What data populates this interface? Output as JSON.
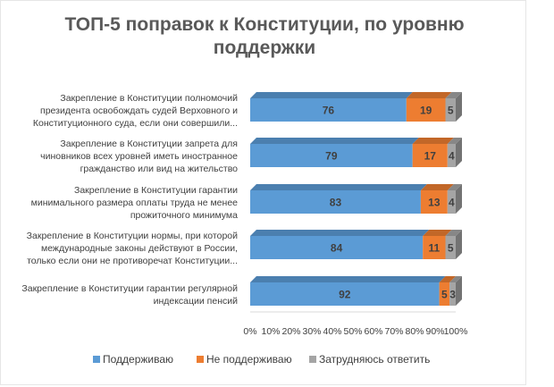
{
  "chart_data": {
    "type": "bar",
    "orientation": "horizontal-stacked-100",
    "title_lines": [
      "ТОП-5 поправок к Конституции, по уровню",
      "поддержки"
    ],
    "categories": [
      [
        "Закрепление в Конституции полномочий",
        "президента освобождать судей Верховного и",
        "Конституционного суда, если они совершили..."
      ],
      [
        "Закрепление в Конституции запрета для",
        "чиновников всех уровней иметь иностранное",
        "гражданство или вид на жительство"
      ],
      [
        "Закрепление в Конституции гарантии",
        "минимального размера оплаты труда не менее",
        "прожиточного минимума"
      ],
      [
        "Закрепление в Конституции нормы, при которой",
        "международные законы действуют в России,",
        "только если они не противоречат Конституции..."
      ],
      [
        "Закрепление в Конституции гарантии регулярной",
        "индексации пенсий"
      ]
    ],
    "series": [
      {
        "name": "Поддерживаю",
        "color": "#5b9bd5",
        "values": [
          76,
          79,
          83,
          84,
          92
        ]
      },
      {
        "name": "Не поддерживаю",
        "color": "#ed7d31",
        "values": [
          19,
          17,
          13,
          11,
          5
        ]
      },
      {
        "name": "Затрудняюсь ответить",
        "color": "#a5a5a5",
        "values": [
          5,
          4,
          4,
          5,
          3
        ]
      }
    ],
    "xticks": [
      "0%",
      "10%",
      "20%",
      "30%",
      "40%",
      "50%",
      "60%",
      "70%",
      "80%",
      "90%",
      "100%"
    ],
    "xlim": [
      0,
      100
    ],
    "legend_position": "bottom",
    "grid": false
  }
}
